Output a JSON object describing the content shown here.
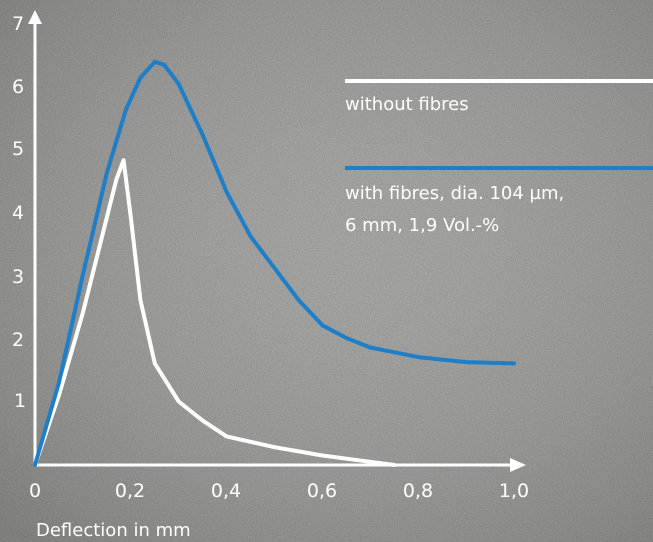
{
  "colors": {
    "background": "#8a8a88",
    "axis": "#ffffff",
    "without_fibres": "#ffffff",
    "with_fibres": "#1e7ec8"
  },
  "chart_data": {
    "type": "line",
    "xlabel": "Deflection in mm",
    "ylabel": "",
    "xlim": [
      0,
      1.0
    ],
    "ylim": [
      0,
      7
    ],
    "grid": false,
    "x_ticks": [
      "0",
      "0,2",
      "0,4",
      "0,6",
      "0,8",
      "1,0"
    ],
    "y_ticks": [
      "1",
      "2",
      "3",
      "4",
      "5",
      "6",
      "7"
    ],
    "legend_position": "right",
    "series": [
      {
        "name": "without fibres",
        "color": "#ffffff",
        "points": [
          [
            0,
            0
          ],
          [
            0.05,
            1.1
          ],
          [
            0.1,
            2.4
          ],
          [
            0.14,
            3.6
          ],
          [
            0.17,
            4.5
          ],
          [
            0.185,
            4.8
          ],
          [
            0.2,
            3.9
          ],
          [
            0.22,
            2.6
          ],
          [
            0.25,
            1.6
          ],
          [
            0.3,
            1.0
          ],
          [
            0.35,
            0.7
          ],
          [
            0.4,
            0.45
          ],
          [
            0.5,
            0.28
          ],
          [
            0.6,
            0.15
          ],
          [
            0.7,
            0.05
          ],
          [
            0.75,
            0.0
          ]
        ]
      },
      {
        "name": "with fibres, dia. 104 µm, 6 mm, 1,9 Vol.-%",
        "label_lines": [
          "with fibres, dia. 104 µm,",
          "6 mm, 1,9 Vol.-%"
        ],
        "color": "#1e7ec8",
        "points": [
          [
            0,
            0
          ],
          [
            0.05,
            1.3
          ],
          [
            0.1,
            3.0
          ],
          [
            0.15,
            4.6
          ],
          [
            0.19,
            5.6
          ],
          [
            0.22,
            6.1
          ],
          [
            0.25,
            6.35
          ],
          [
            0.27,
            6.3
          ],
          [
            0.3,
            6.0
          ],
          [
            0.35,
            5.2
          ],
          [
            0.4,
            4.3
          ],
          [
            0.45,
            3.6
          ],
          [
            0.5,
            3.1
          ],
          [
            0.55,
            2.6
          ],
          [
            0.6,
            2.2
          ],
          [
            0.65,
            2.0
          ],
          [
            0.7,
            1.85
          ],
          [
            0.8,
            1.7
          ],
          [
            0.9,
            1.62
          ],
          [
            1.0,
            1.6
          ]
        ]
      }
    ]
  }
}
